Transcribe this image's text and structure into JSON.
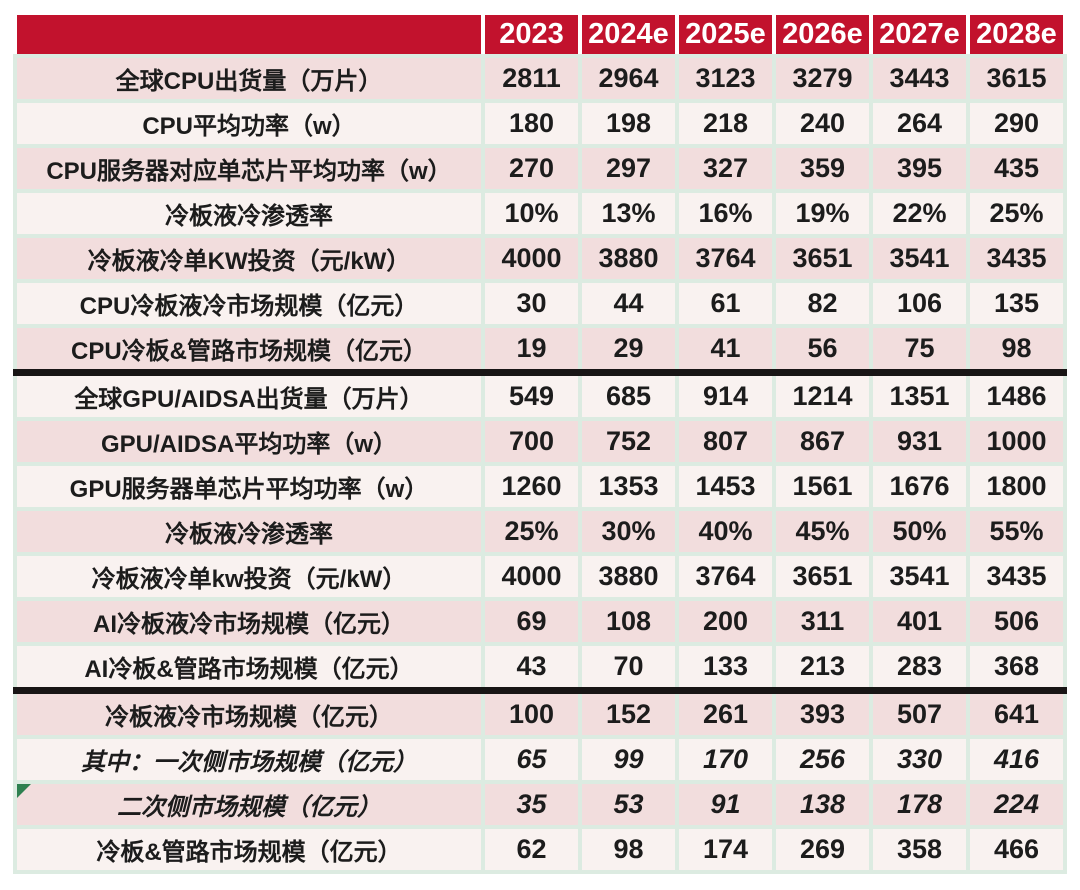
{
  "chart_data": {
    "type": "table",
    "columns": [
      "",
      "2023",
      "2024e",
      "2025e",
      "2026e",
      "2027e",
      "2028e"
    ],
    "rows": [
      {
        "label": "全球CPU出货量（万片）",
        "values": [
          "2811",
          "2964",
          "3123",
          "3279",
          "3443",
          "3615"
        ],
        "italic": false,
        "section_end": false,
        "flag": false
      },
      {
        "label": "CPU平均功率（w）",
        "values": [
          "180",
          "198",
          "218",
          "240",
          "264",
          "290"
        ],
        "italic": false,
        "section_end": false,
        "flag": false
      },
      {
        "label": "CPU服务器对应单芯片平均功率（w）",
        "values": [
          "270",
          "297",
          "327",
          "359",
          "395",
          "435"
        ],
        "italic": false,
        "section_end": false,
        "flag": false
      },
      {
        "label": "冷板液冷渗透率",
        "values": [
          "10%",
          "13%",
          "16%",
          "19%",
          "22%",
          "25%"
        ],
        "italic": false,
        "section_end": false,
        "flag": false
      },
      {
        "label": "冷板液冷单KW投资（元/kW）",
        "values": [
          "4000",
          "3880",
          "3764",
          "3651",
          "3541",
          "3435"
        ],
        "italic": false,
        "section_end": false,
        "flag": false
      },
      {
        "label": "CPU冷板液冷市场规模（亿元）",
        "values": [
          "30",
          "44",
          "61",
          "82",
          "106",
          "135"
        ],
        "italic": false,
        "section_end": false,
        "flag": false
      },
      {
        "label": "CPU冷板&管路市场规模（亿元）",
        "values": [
          "19",
          "29",
          "41",
          "56",
          "75",
          "98"
        ],
        "italic": false,
        "section_end": true,
        "flag": false
      },
      {
        "label": "全球GPU/AIDSA出货量（万片）",
        "values": [
          "549",
          "685",
          "914",
          "1214",
          "1351",
          "1486"
        ],
        "italic": false,
        "section_end": false,
        "flag": false
      },
      {
        "label": "GPU/AIDSA平均功率（w）",
        "values": [
          "700",
          "752",
          "807",
          "867",
          "931",
          "1000"
        ],
        "italic": false,
        "section_end": false,
        "flag": false
      },
      {
        "label": "GPU服务器单芯片平均功率（w）",
        "values": [
          "1260",
          "1353",
          "1453",
          "1561",
          "1676",
          "1800"
        ],
        "italic": false,
        "section_end": false,
        "flag": false
      },
      {
        "label": "冷板液冷渗透率",
        "values": [
          "25%",
          "30%",
          "40%",
          "45%",
          "50%",
          "55%"
        ],
        "italic": false,
        "section_end": false,
        "flag": false
      },
      {
        "label": "冷板液冷单kw投资（元/kW）",
        "values": [
          "4000",
          "3880",
          "3764",
          "3651",
          "3541",
          "3435"
        ],
        "italic": false,
        "section_end": false,
        "flag": false
      },
      {
        "label": "AI冷板液冷市场规模（亿元）",
        "values": [
          "69",
          "108",
          "200",
          "311",
          "401",
          "506"
        ],
        "italic": false,
        "section_end": false,
        "flag": false
      },
      {
        "label": "AI冷板&管路市场规模（亿元）",
        "values": [
          "43",
          "70",
          "133",
          "213",
          "283",
          "368"
        ],
        "italic": false,
        "section_end": true,
        "flag": false
      },
      {
        "label": "冷板液冷市场规模（亿元）",
        "values": [
          "100",
          "152",
          "261",
          "393",
          "507",
          "641"
        ],
        "italic": false,
        "section_end": false,
        "flag": false
      },
      {
        "label": "其中：一次侧市场规模（亿元）",
        "values": [
          "65",
          "99",
          "170",
          "256",
          "330",
          "416"
        ],
        "italic": true,
        "section_end": false,
        "flag": false
      },
      {
        "label": "二次侧市场规模（亿元）",
        "values": [
          "35",
          "53",
          "91",
          "138",
          "178",
          "224"
        ],
        "italic": true,
        "section_end": false,
        "flag": true
      },
      {
        "label": "冷板&管路市场规模（亿元）",
        "values": [
          "62",
          "98",
          "174",
          "269",
          "358",
          "466"
        ],
        "italic": false,
        "section_end": false,
        "flag": false
      }
    ]
  },
  "colors": {
    "header_bg": "#c2122d",
    "header_text": "#ffffff",
    "row_pink": "#f2dddd",
    "row_light": "#f9f2f0",
    "grid": "#dcebe1",
    "separator": "#181515",
    "text": "#1c1c1c",
    "flag": "#2e8050"
  }
}
